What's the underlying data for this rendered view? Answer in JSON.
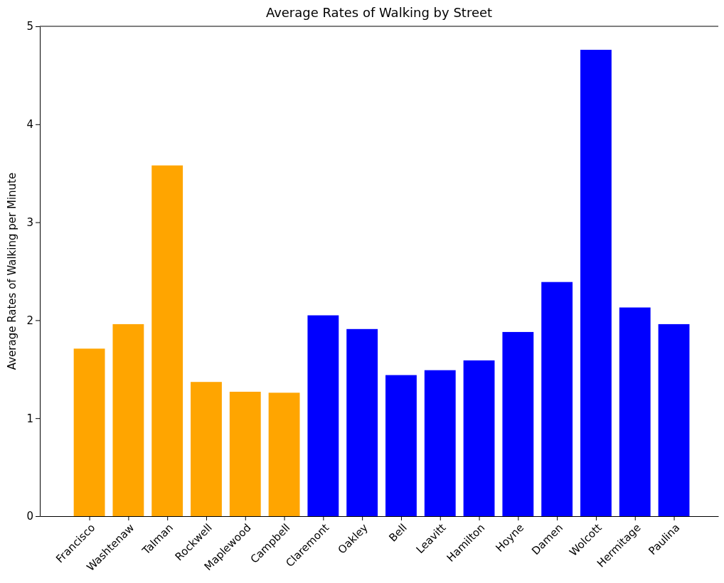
{
  "chart_data": {
    "type": "bar",
    "title": "Average Rates of Walking by Street",
    "ylabel": "Average Rates of Walking per Minute",
    "categories": [
      "Francisco",
      "Washtenaw",
      "Talman",
      "Rockwell",
      "Maplewood",
      "Campbell",
      "Claremont",
      "Oakley",
      "Bell",
      "Leavitt",
      "Hamilton",
      "Hoyne",
      "Damen",
      "Wolcott",
      "Hermitage",
      "Paulina"
    ],
    "values": [
      1.71,
      1.96,
      3.58,
      1.37,
      1.27,
      1.26,
      2.05,
      1.91,
      1.44,
      1.49,
      1.59,
      1.88,
      2.39,
      4.76,
      2.13,
      1.96
    ],
    "colors": [
      "#ffa500",
      "#ffa500",
      "#ffa500",
      "#ffa500",
      "#ffa500",
      "#ffa500",
      "#0000ff",
      "#0000ff",
      "#0000ff",
      "#0000ff",
      "#0000ff",
      "#0000ff",
      "#0000ff",
      "#0000ff",
      "#0000ff",
      "#0000ff"
    ],
    "ylim": [
      0,
      5
    ],
    "yticks": [
      0,
      1,
      2,
      3,
      4,
      5
    ],
    "grid": false
  }
}
